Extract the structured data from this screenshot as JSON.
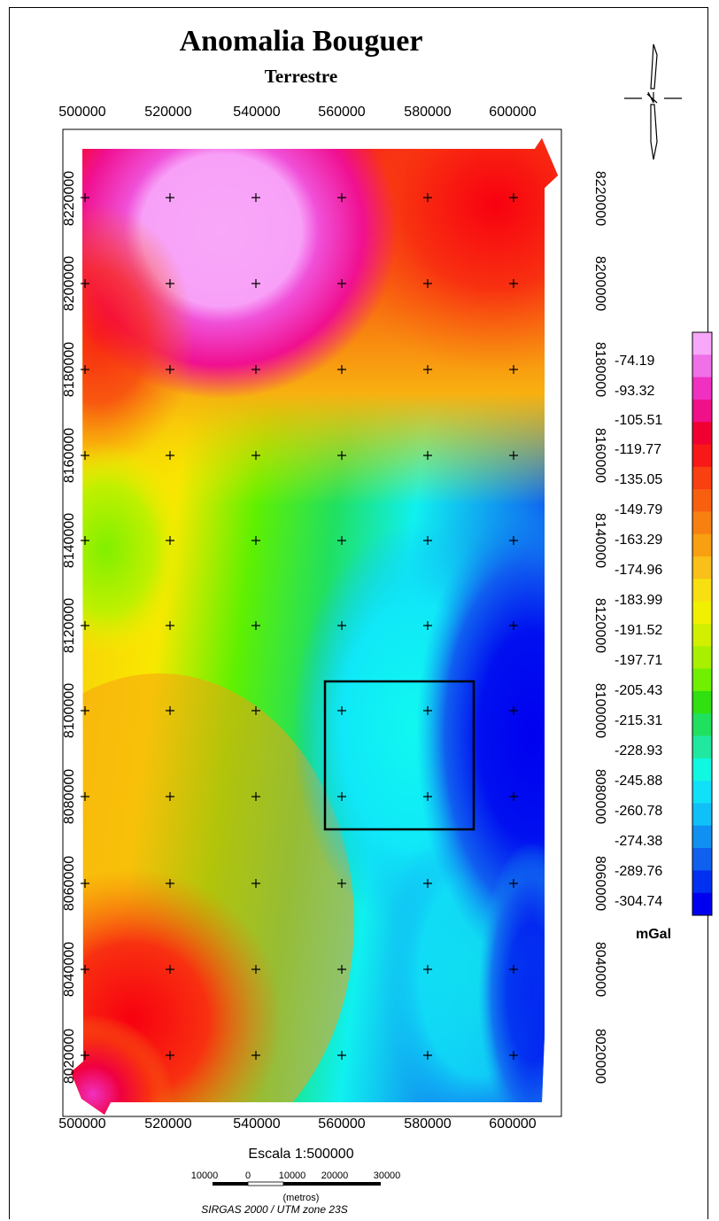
{
  "title": "Anomalia Bouguer",
  "subtitle": "Terrestre",
  "x_ticks": [
    "500000",
    "520000",
    "540000",
    "560000",
    "580000",
    "600000"
  ],
  "y_ticks": [
    "8220000",
    "8200000",
    "8180000",
    "8160000",
    "8140000",
    "8120000",
    "8100000",
    "8080000",
    "8060000",
    "8040000",
    "8020000"
  ],
  "legend": {
    "labels": [
      "-74.19",
      "-93.32",
      "-105.51",
      "-119.77",
      "-135.05",
      "-149.79",
      "-163.29",
      "-174.96",
      "-183.99",
      "-191.52",
      "-197.71",
      "-205.43",
      "-215.31",
      "-228.93",
      "-245.88",
      "-260.78",
      "-274.38",
      "-289.76",
      "-304.74"
    ],
    "unit": "mGal",
    "colors": [
      "#f8a8f8",
      "#f070e8",
      "#f030c0",
      "#f01088",
      "#f00030",
      "#f81818",
      "#f84010",
      "#f86010",
      "#f88010",
      "#f8a010",
      "#f8c018",
      "#f8e010",
      "#f0f000",
      "#d0f000",
      "#a8f000",
      "#70f000",
      "#30e010",
      "#20e060",
      "#20e8a0",
      "#10f8e0",
      "#10e0f8",
      "#10c0f8",
      "#1090f0",
      "#1060f0",
      "#0030f0",
      "#0000f0"
    ]
  },
  "map_colors": {
    "deep_blue": "#0000f0",
    "blue": "#1060f0",
    "cyan": "#10f8f8",
    "green": "#20e030",
    "yellow_green": "#c0f000",
    "yellow": "#f8f000",
    "orange": "#f8a010",
    "red": "#f00018",
    "magenta": "#f020b0",
    "pink": "#f8a0f8"
  },
  "scale": {
    "text": "Escala 1:500000",
    "labels": [
      "10000",
      "0",
      "10000",
      "20000",
      "30000"
    ],
    "unit": "(metros)"
  },
  "projection": "SIRGAS 2000 / UTM zone 23S",
  "north_arrow": "north-arrow-icon"
}
